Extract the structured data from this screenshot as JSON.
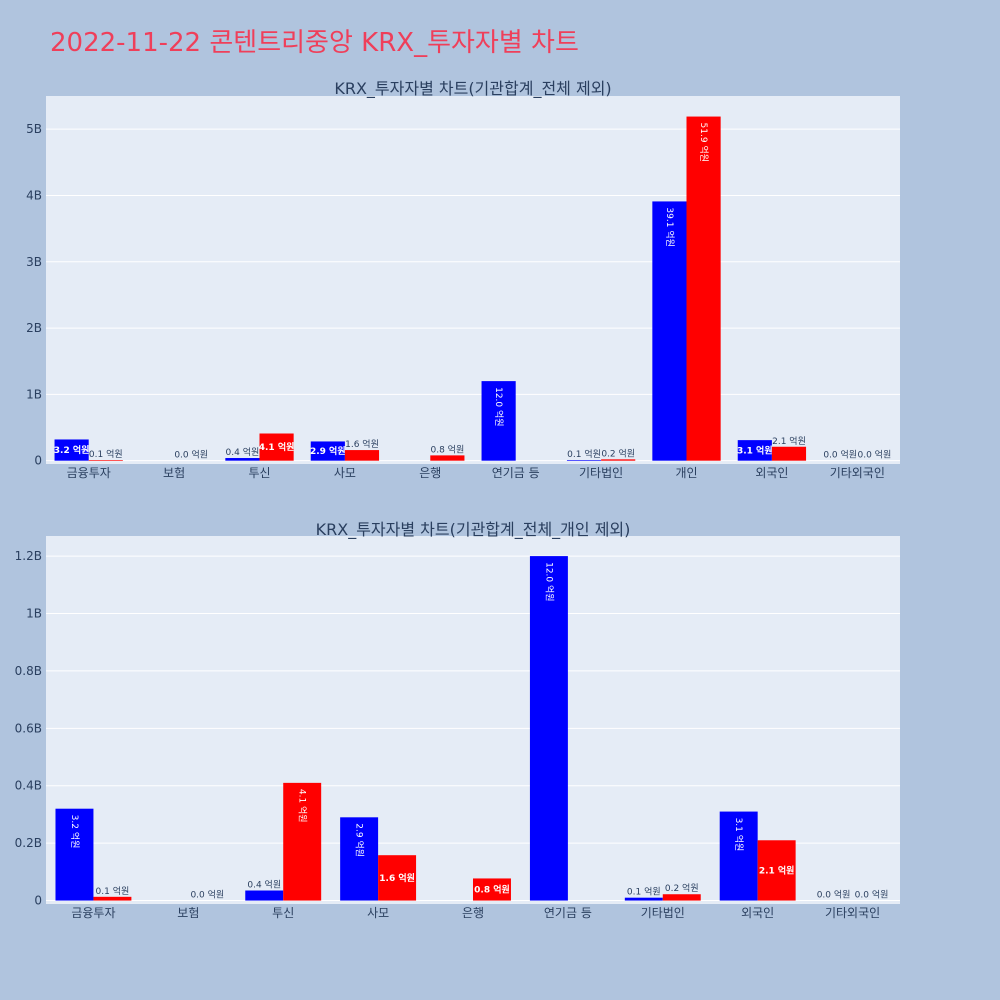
{
  "title": "2022-11-22 콘텐트리중앙 KRX_투자자별 차트",
  "colors": {
    "background": "#b0c4de",
    "plot_bg": "#e5ecf6",
    "grid": "#ffffff",
    "buy": "#0000ff",
    "sell": "#ff0000",
    "title": "#ef3f5a",
    "text": "#2a3f5f"
  },
  "chart_data": [
    {
      "type": "bar",
      "title": "KRX_투자자별 차트(기관합계_전체 제외)",
      "categories": [
        "금융투자",
        "보험",
        "투신",
        "사모",
        "은행",
        "연기금 등",
        "기타법인",
        "개인",
        "외국인",
        "기타외국인"
      ],
      "series": [
        {
          "values": [
            0.32,
            0.0,
            0.04,
            0.29,
            0.0,
            1.2,
            0.01,
            3.91,
            0.31,
            0.0
          ],
          "labels": [
            "3.2 억원",
            "",
            "0.4 억원",
            "2.9 억원",
            "",
            "12.0 억원",
            "0.1 억원",
            "39.1 억원",
            "3.1 억원",
            "0.0 억원"
          ]
        },
        {
          "values": [
            0.01,
            0.0,
            0.41,
            0.16,
            0.08,
            0.0,
            0.02,
            5.19,
            0.21,
            0.0
          ],
          "labels": [
            "0.1 억원",
            "0.0 억원",
            "4.1 억원",
            "1.6 억원",
            "0.8 억원",
            "",
            "0.2 억원",
            "51.9 억원",
            "2.1 억원",
            "0.0 억원"
          ]
        }
      ],
      "yticks": [
        0,
        1,
        2,
        3,
        4,
        5
      ],
      "ytick_labels": [
        "0",
        "1B",
        "2B",
        "3B",
        "4B",
        "5B"
      ],
      "ylim": [
        -0.05,
        5.5
      ]
    },
    {
      "type": "bar",
      "title": "KRX_투자자별 차트(기관합계_전체_개인 제외)",
      "categories": [
        "금융투자",
        "보험",
        "투신",
        "사모",
        "은행",
        "연기금 등",
        "기타법인",
        "외국인",
        "기타외국인"
      ],
      "series": [
        {
          "values": [
            0.32,
            0.0,
            0.035,
            0.29,
            0.0,
            1.2,
            0.01,
            0.31,
            0.0
          ],
          "labels": [
            "3.2 억원",
            "",
            "0.4 억원",
            "2.9 억원",
            "",
            "12.0 억원",
            "0.1 억원",
            "3.1 억원",
            "0.0 억원"
          ]
        },
        {
          "values": [
            0.013,
            0.0,
            0.41,
            0.158,
            0.077,
            0.0,
            0.022,
            0.21,
            0.0
          ],
          "labels": [
            "0.1 억원",
            "0.0 억원",
            "4.1 억원",
            "1.6 억원",
            "0.8 억원",
            "",
            "0.2 억원",
            "2.1 억원",
            "0.0 억원"
          ]
        }
      ],
      "yticks": [
        0,
        0.2,
        0.4,
        0.6,
        0.8,
        1.0,
        1.2
      ],
      "ytick_labels": [
        "0",
        "0.2B",
        "0.4B",
        "0.6B",
        "0.8B",
        "1B",
        "1.2B"
      ],
      "ylim": [
        -0.012,
        1.27
      ]
    }
  ]
}
